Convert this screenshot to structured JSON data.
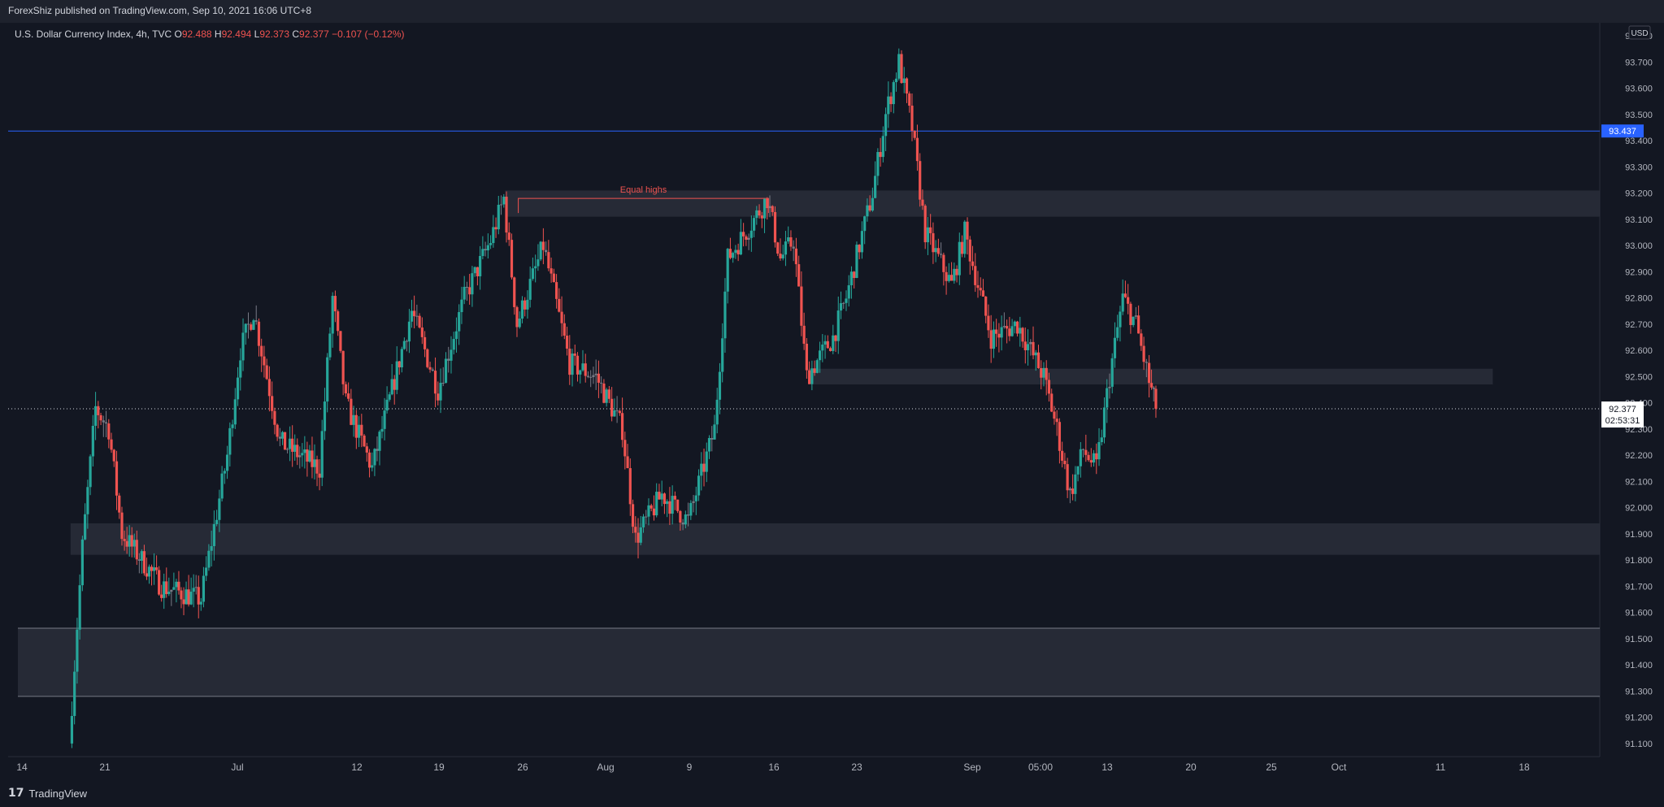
{
  "header": {
    "published": "ForexShiz published on TradingView.com, Sep 10, 2021 16:06 UTC+8"
  },
  "legend": {
    "symbol": "U.S. Dollar Currency Index, 4h, TVC",
    "open_label": "O",
    "open": "92.488",
    "high_label": "H",
    "high": "92.494",
    "low_label": "L",
    "low": "92.373",
    "close_label": "C",
    "close": "92.377",
    "change": "−0.107 (−0.12%)"
  },
  "currency_badge": "USD",
  "footer": {
    "brand": "TradingView"
  },
  "colors": {
    "background": "#131722",
    "up": "#26a69a",
    "down": "#ef5350",
    "neutral_candle": "#787b86",
    "zone": "#2a2e39",
    "level_line": "#2962ff",
    "text": "#d1d4dc",
    "label_red": "#ef5350"
  },
  "chart_data": {
    "type": "candlestick",
    "title": "U.S. Dollar Currency Index, 4h, TVC",
    "ylim": [
      91.05,
      93.85
    ],
    "y_ticks": [
      "91.100",
      "91.200",
      "91.300",
      "91.400",
      "91.500",
      "91.600",
      "91.700",
      "91.800",
      "91.900",
      "92.000",
      "92.100",
      "92.200",
      "92.300",
      "92.400",
      "92.500",
      "92.600",
      "92.700",
      "92.800",
      "92.900",
      "93.000",
      "93.100",
      "93.200",
      "93.300",
      "93.400",
      "93.500",
      "93.600",
      "93.700",
      "93.800"
    ],
    "x_ticks": [
      "14",
      "21",
      "Jul",
      "12",
      "19",
      "26",
      "Aug",
      "9",
      "16",
      "23",
      "Sep",
      "05:00",
      "13",
      "20",
      "25",
      "Oct",
      "11",
      "18"
    ],
    "last_price": "92.377",
    "countdown": "02:53:31",
    "horizontal_level": {
      "value": 93.437,
      "label": "93.437"
    },
    "annotation": {
      "text": "Equal highs",
      "value": 93.18
    },
    "zones": [
      {
        "from": 93.11,
        "to": 93.21,
        "start": "Jul 21",
        "end": "Oct 18"
      },
      {
        "from": 92.47,
        "to": 92.53,
        "start": "Aug 13",
        "end": "Oct 4"
      },
      {
        "from": 91.82,
        "to": 91.94,
        "start": "Jun 18",
        "end": "Oct 18"
      },
      {
        "from": 91.28,
        "to": 91.54,
        "start": "Jun 14",
        "end": "Oct 31"
      }
    ],
    "price_path": [
      [
        "Jun 18",
        91.1
      ],
      [
        "Jun 19",
        91.85
      ],
      [
        "Jun 20",
        92.38
      ],
      [
        "Jun 21",
        92.3
      ],
      [
        "Jun 22",
        91.9
      ],
      [
        "Jun 25",
        91.7
      ],
      [
        "Jun 28",
        91.65
      ],
      [
        "Jun 30",
        92.2
      ],
      [
        "Jul 1",
        92.6
      ],
      [
        "Jul 2",
        92.75
      ],
      [
        "Jul 4",
        92.25
      ],
      [
        "Jul 7",
        92.15
      ],
      [
        "Jul 8",
        92.8
      ],
      [
        "Jul 9",
        92.4
      ],
      [
        "Jul 11",
        92.15
      ],
      [
        "Jul 14",
        92.75
      ],
      [
        "Jul 16",
        92.45
      ],
      [
        "Jul 18",
        92.8
      ],
      [
        "Jul 20",
        93.02
      ],
      [
        "Jul 21",
        93.18
      ],
      [
        "Jul 22",
        92.7
      ],
      [
        "Jul 24",
        93.0
      ],
      [
        "Jul 26",
        92.55
      ],
      [
        "Jul 28",
        92.5
      ],
      [
        "Jul 30",
        92.3
      ],
      [
        "Jul 31",
        91.88
      ],
      [
        "Aug 2",
        92.05
      ],
      [
        "Aug 4",
        91.95
      ],
      [
        "Aug 6",
        92.3
      ],
      [
        "Aug 7",
        92.95
      ],
      [
        "Aug 9",
        93.1
      ],
      [
        "Aug 10",
        93.18
      ],
      [
        "Aug 11",
        92.95
      ],
      [
        "Aug 12",
        93.02
      ],
      [
        "Aug 13",
        92.5
      ],
      [
        "Aug 15",
        92.65
      ],
      [
        "Aug 16",
        92.8
      ],
      [
        "Aug 18",
        93.2
      ],
      [
        "Aug 19",
        93.5
      ],
      [
        "Aug 20",
        93.7
      ],
      [
        "Aug 21",
        93.45
      ],
      [
        "Aug 22",
        93.05
      ],
      [
        "Aug 24",
        92.85
      ],
      [
        "Aug 25",
        93.05
      ],
      [
        "Aug 26",
        92.85
      ],
      [
        "Aug 27",
        92.65
      ],
      [
        "Aug 29",
        92.7
      ],
      [
        "Aug 31",
        92.5
      ],
      [
        "Sep 1",
        92.3
      ],
      [
        "Sep 2",
        92.05
      ],
      [
        "Sep 3",
        92.22
      ],
      [
        "Sep 4",
        92.15
      ],
      [
        "Sep 5",
        92.5
      ],
      [
        "Sep 6",
        92.8
      ],
      [
        "Sep 7",
        92.7
      ],
      [
        "Sep 8",
        92.48
      ],
      [
        "Sep 8b",
        92.377
      ]
    ]
  }
}
